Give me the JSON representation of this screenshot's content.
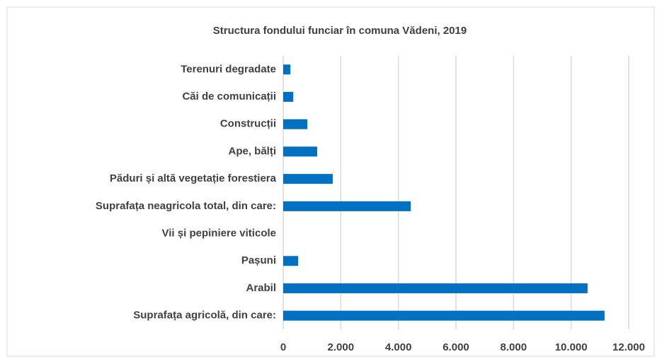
{
  "chart_data": {
    "type": "barh",
    "title": "Structura fondului funciar în comuna Vădeni, 2019",
    "categories": [
      "Terenuri degradate",
      "Căi de comunicații",
      "Construcții",
      "Ape, bălți",
      "Păduri și altă vegetație forestiera",
      "Suprafața neagricola total, din care:",
      "Vii și pepiniere viticole",
      "Pașuni",
      "Arabil",
      "Suprafața agricolă, din care:"
    ],
    "values": [
      250,
      350,
      840,
      1180,
      1720,
      4430,
      0,
      520,
      10570,
      11160
    ],
    "color": "#0070c0",
    "xlim": [
      0,
      12000
    ],
    "xticks": [
      0,
      {
        "value": 2000,
        "label": "2.000"
      },
      {
        "value": 4000,
        "label": "4.000"
      },
      {
        "value": 6000,
        "label": "6.000"
      },
      {
        "value": 8000,
        "label": "8.000"
      },
      {
        "value": 10000,
        "label": "10.000"
      },
      {
        "value": 12000,
        "label": "12.000"
      }
    ],
    "grid": true
  }
}
